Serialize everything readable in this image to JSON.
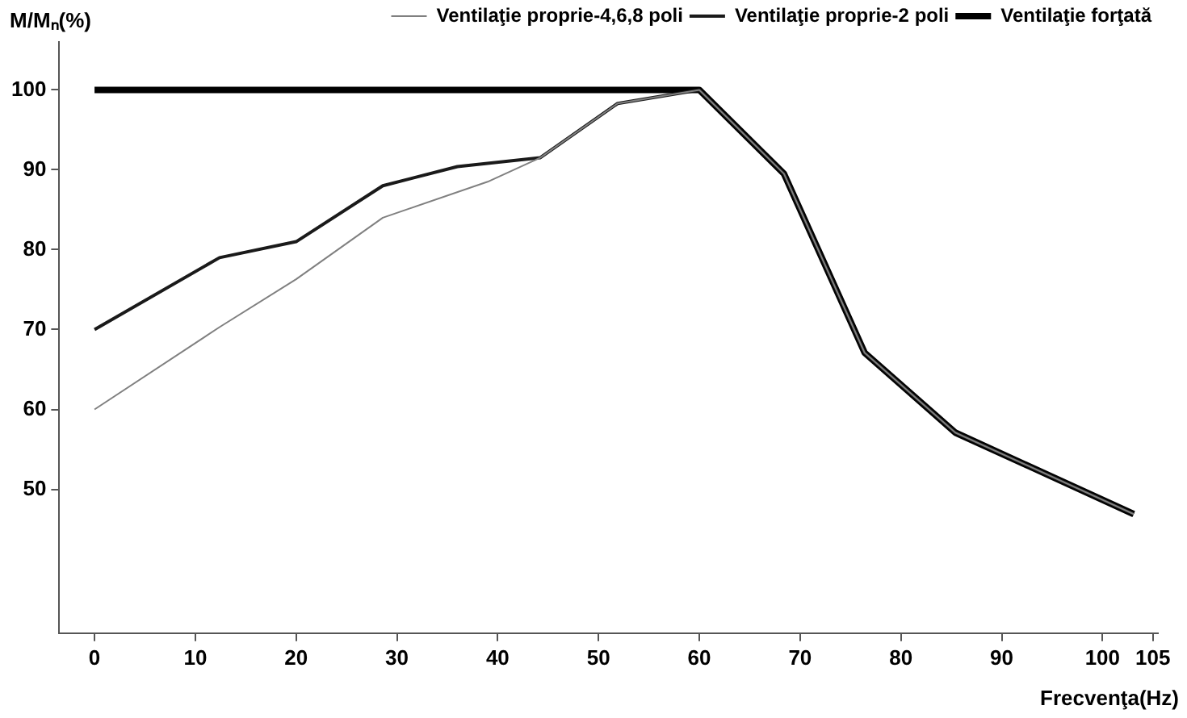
{
  "chart_data": {
    "type": "line",
    "xlabel": "Frecvenţa(Hz)",
    "ylabel": "M/Mₙ(%)",
    "xlim": [
      -3.5,
      105.5
    ],
    "xticks": [
      0,
      10,
      20,
      30,
      40,
      50,
      60,
      70,
      80,
      90,
      100,
      105
    ],
    "ylim": [
      32,
      106
    ],
    "yticks": [
      50,
      60,
      70,
      80,
      90,
      100
    ],
    "grid": false,
    "legend": "top right",
    "marker": "none",
    "line_style": "solid",
    "series": [
      {
        "name": "Ventilaţie proprie-4,6,8 poli",
        "color": "#808080",
        "x": [
          0,
          12.4,
          20,
          28.6,
          39,
          44.2,
          51.9,
          60,
          68.4,
          76.4,
          85.4,
          103.1
        ],
        "values": [
          60,
          70.3,
          76.3,
          84,
          88.5,
          91.5,
          98.3,
          100,
          89.5,
          67.1,
          57.1,
          46.9
        ]
      },
      {
        "name": "Ventilaţie proprie-2 poli",
        "color": "#1a1a1a",
        "x": [
          0,
          12.4,
          20,
          28.6,
          36,
          44.2,
          51.9,
          60,
          68.4,
          76.4,
          85.4,
          103.1
        ],
        "values": [
          70,
          79,
          81,
          88,
          90.4,
          91.5,
          98.3,
          100,
          89.5,
          67.1,
          57.1,
          46.9
        ]
      },
      {
        "name": "Ventilaţie forţată",
        "color": "#000000",
        "x": [
          0,
          60,
          68.4,
          76.4,
          85.4,
          103.1
        ],
        "values": [
          100,
          100,
          89.5,
          67.1,
          57.1,
          46.9
        ]
      }
    ]
  }
}
